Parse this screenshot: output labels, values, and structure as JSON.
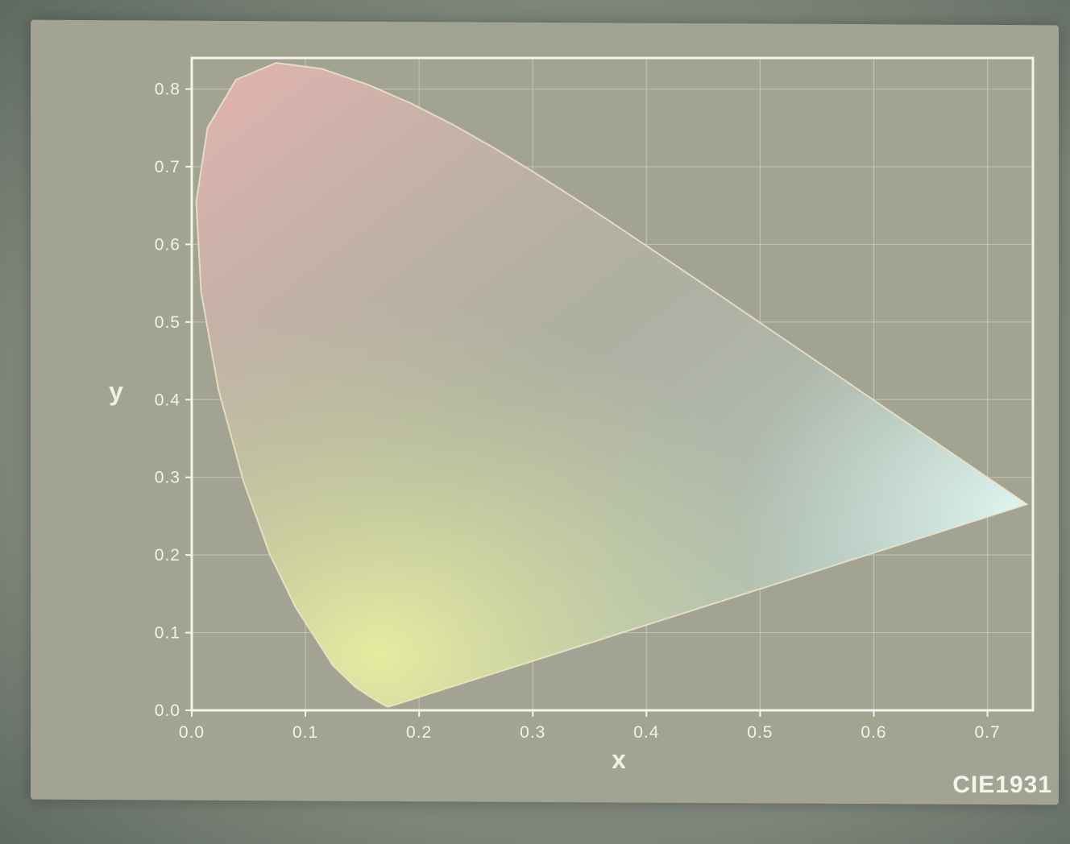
{
  "chart_data": {
    "type": "area",
    "title": "",
    "xlabel": "x",
    "ylabel": "y",
    "xlim": [
      0.0,
      0.74
    ],
    "ylim": [
      0.0,
      0.84
    ],
    "xticks": [
      "0.0",
      "0.1",
      "0.2",
      "0.3",
      "0.4",
      "0.5",
      "0.6",
      "0.7"
    ],
    "yticks": [
      "0.0",
      "0.1",
      "0.2",
      "0.3",
      "0.4",
      "0.5",
      "0.6",
      "0.7",
      "0.8"
    ],
    "grid": true,
    "series": [
      {
        "x": [
          0.1741,
          0.1738,
          0.1736,
          0.173,
          0.172,
          0.1689,
          0.1644,
          0.1566,
          0.144,
          0.1241,
          0.0913,
          0.0687,
          0.0454,
          0.0235,
          0.0082,
          0.0039,
          0.0139,
          0.0389,
          0.0743,
          0.1142,
          0.1547,
          0.1929,
          0.2296,
          0.2658,
          0.3016,
          0.3373,
          0.3731,
          0.4087,
          0.4441,
          0.4788,
          0.5125,
          0.5448,
          0.5752,
          0.6029,
          0.627,
          0.6482,
          0.6658,
          0.6801,
          0.6915,
          0.7006,
          0.7079,
          0.714,
          0.719,
          0.723,
          0.726,
          0.7283,
          0.73,
          0.7311,
          0.732,
          0.7347,
          0.1741
        ],
        "y": [
          0.005,
          0.0049,
          0.005,
          0.0048,
          0.0048,
          0.0069,
          0.0109,
          0.0177,
          0.0297,
          0.0578,
          0.1327,
          0.2007,
          0.295,
          0.4127,
          0.5384,
          0.6548,
          0.7502,
          0.812,
          0.8338,
          0.8262,
          0.8059,
          0.7816,
          0.7543,
          0.7243,
          0.6923,
          0.6589,
          0.6245,
          0.5896,
          0.5547,
          0.5202,
          0.4866,
          0.4544,
          0.4242,
          0.3965,
          0.3725,
          0.3514,
          0.334,
          0.3197,
          0.3083,
          0.2993,
          0.292,
          0.2859,
          0.2809,
          0.277,
          0.274,
          0.2717,
          0.27,
          0.2689,
          0.268,
          0.2653,
          0.005
        ]
      }
    ],
    "colors": {
      "background": "#a3a393",
      "grid": "#c9c8bc",
      "frame": "#f4f2ec",
      "axis_text": "#f4f1ea",
      "fill_red_corner": "#e8b3b0",
      "fill_green_bottom": "#d6e3a0",
      "fill_blue_tip": "#d7f0ee",
      "fill_center": "#a7aa9c"
    }
  },
  "watermark": "CIE1931"
}
